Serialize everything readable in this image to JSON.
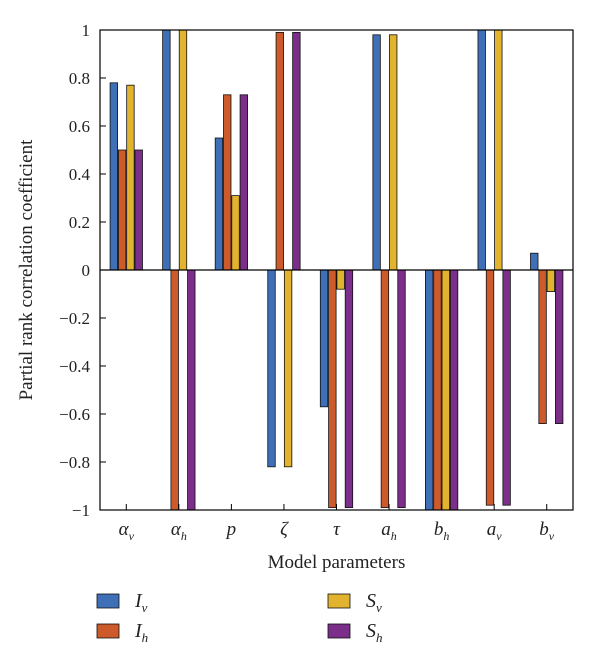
{
  "chart_data": {
    "type": "bar",
    "categories": [
      {
        "base": "α",
        "sub": "v"
      },
      {
        "base": "α",
        "sub": "h"
      },
      {
        "base": "p",
        "sub": ""
      },
      {
        "base": "ζ",
        "sub": ""
      },
      {
        "base": "τ",
        "sub": ""
      },
      {
        "base": "a",
        "sub": "h"
      },
      {
        "base": "b",
        "sub": "h"
      },
      {
        "base": "a",
        "sub": "v"
      },
      {
        "base": "b",
        "sub": "v"
      }
    ],
    "series": [
      {
        "name": {
          "base": "I",
          "sub": "v"
        },
        "color": "#3f6fb6",
        "values": [
          0.78,
          1.0,
          0.55,
          -0.82,
          -0.57,
          0.98,
          -1.0,
          1.0,
          0.07
        ]
      },
      {
        "name": {
          "base": "I",
          "sub": "h"
        },
        "color": "#cc5a2b",
        "values": [
          0.5,
          -1.0,
          0.73,
          0.99,
          -0.99,
          -0.99,
          -1.0,
          -0.98,
          -0.64
        ]
      },
      {
        "name": {
          "base": "S",
          "sub": "v"
        },
        "color": "#e1b32e",
        "values": [
          0.77,
          1.0,
          0.31,
          -0.82,
          -0.08,
          0.98,
          -1.0,
          1.0,
          -0.09
        ]
      },
      {
        "name": {
          "base": "S",
          "sub": "h"
        },
        "color": "#7b2e8a",
        "values": [
          0.5,
          -1.0,
          0.73,
          0.99,
          -0.99,
          -0.99,
          -1.0,
          -0.98,
          -0.64
        ]
      }
    ],
    "xlabel": "Model parameters",
    "ylabel": "Partial rank correlation coefficient",
    "ylim": [
      -1,
      1
    ],
    "yticks": [
      1,
      0.8,
      0.6,
      0.4,
      0.2,
      0,
      -0.2,
      -0.4,
      -0.6,
      -0.8,
      -1
    ],
    "ytick_labels": [
      "1",
      "0.8",
      "0.6",
      "0.4",
      "0.2",
      "0",
      "−0.2",
      "−0.4",
      "−0.6",
      "−0.8",
      "−1"
    ],
    "grid": false,
    "legend_position": "bottom"
  }
}
